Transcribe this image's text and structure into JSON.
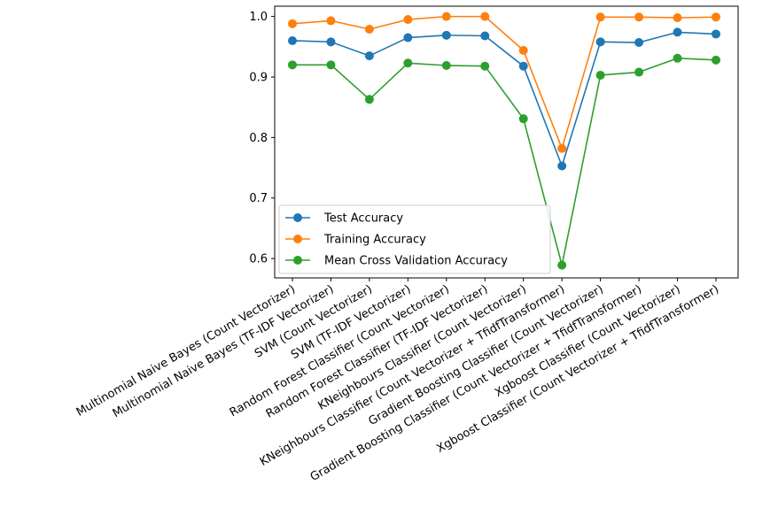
{
  "chart_data": {
    "type": "line",
    "title": "",
    "xlabel": "",
    "ylabel": "",
    "categories": [
      "Multinomial Naive Bayes (Count Vectorizer)",
      "Multinomial Naive Bayes (TF-IDF Vectorizer)",
      "SVM (Count Vectorizer)",
      "SVM (TF-IDF Vectorizer)",
      "Random Forest Classifier (Count Vectorizer)",
      "Random Forest Classifier (TF-IDF Vectorizer)",
      "KNeighbours Classifier (Count Vectorizer)",
      "KNeighbours Classifier (Count Vectorizer + TfidfTransformer)",
      "Gradient Boosting Classifier (Count Vectorizer)",
      "Gradient Boosting Classifier (Count Vectorizer + TfidfTransformer)",
      "Xgboost Classifier (Count Vectorizer)",
      "Xgboost Classifier (Count Vectorizer + TfidfTransformer)"
    ],
    "ylim": [
      0.568,
      1.017
    ],
    "yticks": [
      "0.6",
      "0.7",
      "0.8",
      "0.9",
      "1.0"
    ],
    "grid": false,
    "legend_position": "lower-left",
    "series": [
      {
        "name": "Test Accuracy",
        "color": "#1f77b4",
        "values": [
          0.96,
          0.958,
          0.935,
          0.965,
          0.969,
          0.968,
          0.918,
          0.753,
          0.958,
          0.957,
          0.974,
          0.971
        ]
      },
      {
        "name": "Training Accuracy",
        "color": "#ff7f0e",
        "values": [
          0.988,
          0.993,
          0.979,
          0.995,
          1.0,
          1.0,
          0.944,
          0.782,
          0.999,
          0.999,
          0.998,
          0.999
        ]
      },
      {
        "name": "Mean Cross Validation Accuracy",
        "color": "#2ca02c",
        "values": [
          0.92,
          0.92,
          0.863,
          0.923,
          0.919,
          0.918,
          0.831,
          0.589,
          0.903,
          0.908,
          0.931,
          0.928
        ]
      }
    ]
  }
}
